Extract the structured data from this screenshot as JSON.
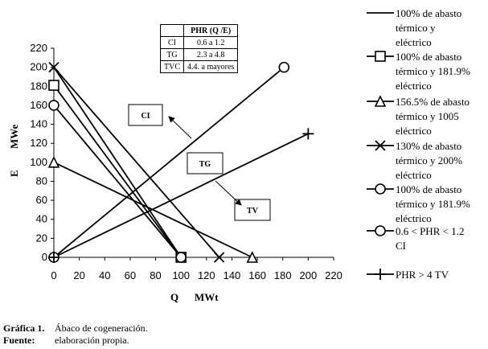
{
  "table": {
    "header": [
      "",
      "PHR  (Q /E)"
    ],
    "rows": [
      [
        "CI",
        "0.6 a 1.2"
      ],
      [
        "TG",
        "2.3 a 4.8"
      ],
      [
        "TVC",
        "4.4. a mayores"
      ]
    ]
  },
  "boxes": [
    {
      "label": "CI"
    },
    {
      "label": "TG"
    },
    {
      "label": "TV"
    }
  ],
  "caption": {
    "line1_label": "Gráfica 1.",
    "line1_text": "Ábaco de cogeneración.",
    "line2_label": "Fuente:",
    "line2_text": "elaboración propia."
  },
  "chart_data": {
    "type": "line",
    "xlabel_q": "Q",
    "xlabel_unit": "MWt",
    "ylabel_e": "E",
    "ylabel_unit": "MWe",
    "xlim": [
      0,
      220
    ],
    "ylim": [
      0,
      220
    ],
    "xticks": [
      0,
      20,
      40,
      60,
      80,
      100,
      120,
      140,
      160,
      180,
      200,
      220
    ],
    "yticks": [
      0,
      20,
      40,
      60,
      80,
      100,
      120,
      140,
      160,
      180,
      200,
      220
    ],
    "grid": false,
    "legend_position": "right",
    "series": [
      {
        "name": "100% de abasto térmico y eléctrico",
        "marker": "none",
        "points": [
          [
            0,
            200
          ],
          [
            100,
            0
          ]
        ]
      },
      {
        "name": "100% de abasto térmico y 181.9% eléctrico",
        "marker": "square",
        "points": [
          [
            0,
            181
          ],
          [
            100,
            0
          ]
        ]
      },
      {
        "name": "156.5% de abasto térmico y 1005 eléctrico",
        "marker": "triangle",
        "points": [
          [
            0,
            100
          ],
          [
            156,
            0
          ]
        ]
      },
      {
        "name": "130% de abasto térmico y 200% eléctrico",
        "marker": "x",
        "points": [
          [
            0,
            200
          ],
          [
            130,
            0
          ]
        ]
      },
      {
        "name": "100% de abasto térmico y 181.9% eléctrico",
        "marker": "circle",
        "points": [
          [
            0,
            160
          ],
          [
            100,
            0
          ]
        ]
      },
      {
        "name": "0.6 < PHR < 1.2 CI",
        "marker": "circle",
        "points": [
          [
            0,
            0
          ],
          [
            181,
            200
          ]
        ]
      },
      {
        "name": "PHR > 4     TV",
        "marker": "plus",
        "points": [
          [
            0,
            0
          ],
          [
            200,
            130
          ]
        ]
      }
    ]
  }
}
